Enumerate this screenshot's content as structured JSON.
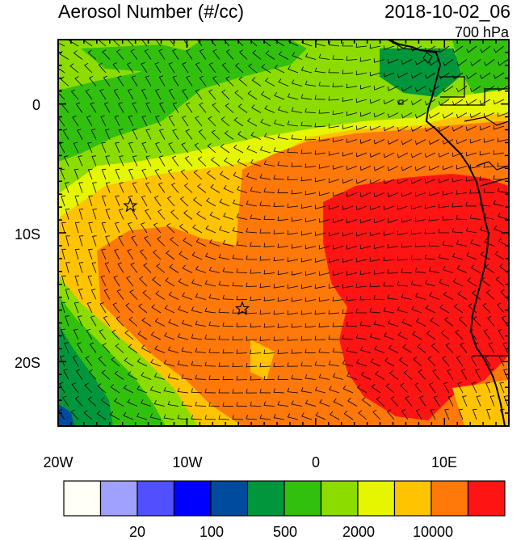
{
  "title": "Aerosol Number (#/cc)",
  "datetime": "2018-10-02_06",
  "level": "700 hPa",
  "lat_labels": [
    "0",
    "10S",
    "20S"
  ],
  "lon_labels": [
    "20W",
    "10W",
    "0",
    "10E"
  ],
  "colorbar": {
    "colors": [
      "#fffff6",
      "#a0a0ff",
      "#5050ff",
      "#0000ff",
      "#004b9e",
      "#00963c",
      "#32c00f",
      "#8cdc00",
      "#e6f500",
      "#ffc300",
      "#ff780a",
      "#ff1414"
    ],
    "labels": [
      "20",
      "100",
      "500",
      "2000",
      "10000"
    ]
  },
  "map": {
    "extent": {
      "lon": [
        -20,
        15
      ],
      "lat": [
        -25,
        5
      ]
    },
    "markers": [
      {
        "name": "star",
        "lon": -14.4,
        "lat": -7.9
      },
      {
        "name": "star",
        "lon": -5.7,
        "lat": -15.9
      }
    ],
    "wind_barbs": true,
    "coastlines": true,
    "country_borders": true
  }
}
